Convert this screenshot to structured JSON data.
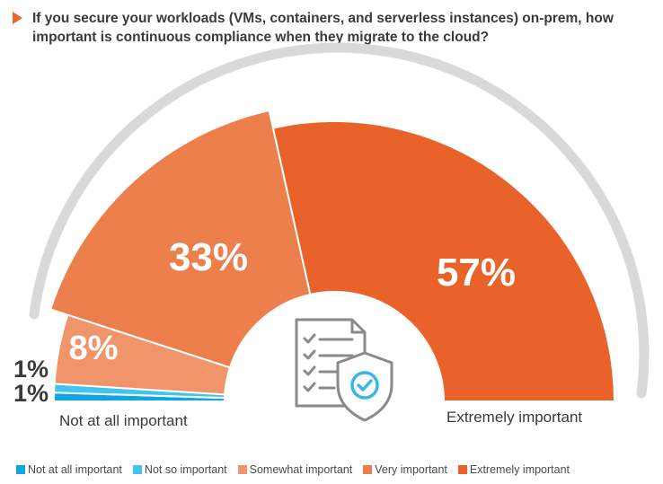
{
  "title": "If you secure your workloads (VMs, containers, and serverless instances) on-prem, how important is continuous compliance when they migrate to the cloud?",
  "chart_data": {
    "type": "pie",
    "subtype": "half-donut",
    "title": "If you secure your workloads (VMs, containers, and serverless instances) on-prem, how important is continuous compliance when they migrate to the cloud?",
    "categories": [
      "Not at all important",
      "Not so important",
      "Somewhat important",
      "Very important",
      "Extremely important"
    ],
    "values": [
      1,
      1,
      8,
      33,
      57
    ],
    "labels": [
      "1%",
      "1%",
      "8%",
      "33%",
      "57%"
    ],
    "colors": [
      "#0ea5e0",
      "#42c4ee",
      "#f0956a",
      "#ec7f4b",
      "#e8622a"
    ],
    "scale_labels": {
      "left": "Not at all important",
      "right": "Extremely important"
    },
    "legend_position": "bottom",
    "center_icon": "checklist-shield-icon"
  }
}
